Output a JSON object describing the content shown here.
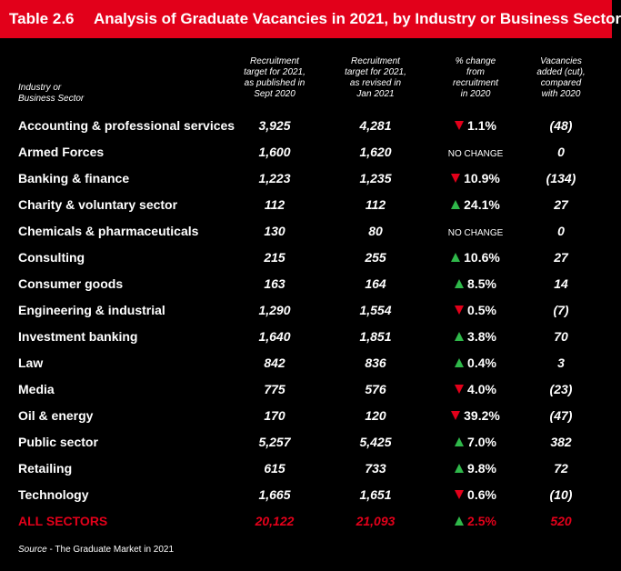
{
  "banner": {
    "table_no": "Table 2.6",
    "title": "Analysis of Graduate Vacancies in 2021, by Industry or Business Sector",
    "color": "#e2001a"
  },
  "headers": {
    "sector": [
      "Industry or",
      "Business Sector"
    ],
    "target_2021_published": [
      "Recruitment",
      "target for 2021,",
      "as published in",
      "Sept 2020"
    ],
    "target_2021_revised": [
      "Recruitment",
      "target for 2021,",
      "as revised in",
      "Jan 2021"
    ],
    "pct_change": [
      "% change",
      "from",
      "recruitment",
      "in 2020"
    ],
    "vacancies_added": [
      "Vacancies",
      "added (cut),",
      "compared",
      "with 2020"
    ]
  },
  "rows": [
    {
      "sector": "Accounting & professional services",
      "published": "3,925",
      "revised": "4,281",
      "direction": "down",
      "change": "1.1%",
      "added": "(48)"
    },
    {
      "sector": "Armed Forces",
      "published": "1,600",
      "revised": "1,620",
      "direction": "none",
      "change": "NO CHANGE",
      "added": "0"
    },
    {
      "sector": "Banking & finance",
      "published": "1,223",
      "revised": "1,235",
      "direction": "down",
      "change": "10.9%",
      "added": "(134)"
    },
    {
      "sector": "Charity & voluntary sector",
      "published": "112",
      "revised": "112",
      "direction": "up",
      "change": "24.1%",
      "added": "27"
    },
    {
      "sector": "Chemicals & pharmaceuticals",
      "published": "130",
      "revised": "80",
      "direction": "none",
      "change": "NO CHANGE",
      "added": "0"
    },
    {
      "sector": "Consulting",
      "published": "215",
      "revised": "255",
      "direction": "up",
      "change": "10.6%",
      "added": "27"
    },
    {
      "sector": "Consumer goods",
      "published": "163",
      "revised": "164",
      "direction": "up",
      "change": "8.5%",
      "added": "14"
    },
    {
      "sector": "Engineering & industrial",
      "published": "1,290",
      "revised": "1,554",
      "direction": "down",
      "change": "0.5%",
      "added": "(7)"
    },
    {
      "sector": "Investment banking",
      "published": "1,640",
      "revised": "1,851",
      "direction": "up",
      "change": "3.8%",
      "added": "70"
    },
    {
      "sector": "Law",
      "published": "842",
      "revised": "836",
      "direction": "up",
      "change": "0.4%",
      "added": "3"
    },
    {
      "sector": "Media",
      "published": "775",
      "revised": "576",
      "direction": "down",
      "change": "4.0%",
      "added": "(23)"
    },
    {
      "sector": "Oil & energy",
      "published": "170",
      "revised": "120",
      "direction": "down",
      "change": "39.2%",
      "added": "(47)"
    },
    {
      "sector": "Public sector",
      "published": "5,257",
      "revised": "5,425",
      "direction": "up",
      "change": "7.0%",
      "added": "382"
    },
    {
      "sector": "Retailing",
      "published": "615",
      "revised": "733",
      "direction": "up",
      "change": "9.8%",
      "added": "72"
    },
    {
      "sector": "Technology",
      "published": "1,665",
      "revised": "1,651",
      "direction": "down",
      "change": "0.6%",
      "added": "(10)"
    }
  ],
  "total": {
    "sector": "ALL SECTORS",
    "published": "20,122",
    "revised": "21,093",
    "direction": "up",
    "change": "2.5%",
    "added": "520"
  },
  "source": {
    "label": "Source",
    "text": " - The Graduate Market in 2021"
  },
  "colors": {
    "accent": "#e2001a",
    "up": "#2fb84a",
    "down": "#e2001a"
  }
}
